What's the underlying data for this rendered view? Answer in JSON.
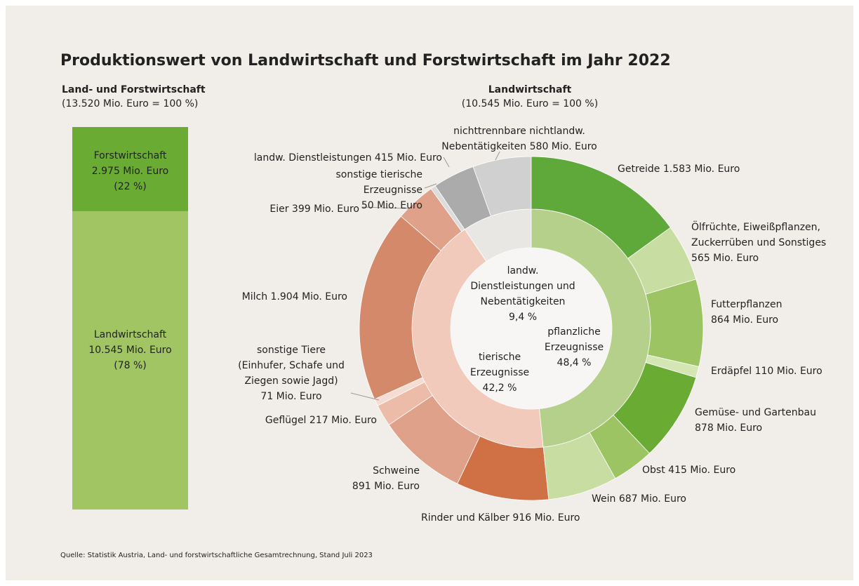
{
  "title": "Produktionswert von Landwirtschaft und Forstwirtschaft im Jahr 2022",
  "source": "Quelle: Statistik Austria, Land- und forstwirtschaftliche Gesamtrechnung, Stand Juli 2023",
  "chart_data": [
    {
      "type": "stacked_bar",
      "title": "Land- und Forstwirtschaft",
      "subtitle": "(13.520 Mio. Euro = 100 %)",
      "categories": [
        "Forstwirtschaft",
        "Landwirtschaft"
      ],
      "values": [
        2975,
        10545
      ],
      "value_labels": [
        "2.975 Mio. Euro",
        "10.545 Mio. Euro"
      ],
      "shares": [
        22,
        78
      ],
      "share_labels": [
        "(22 %)",
        "(78 %)"
      ],
      "colors": [
        "#6aab34",
        "#a2c563"
      ]
    },
    {
      "type": "sunburst",
      "title": "Landwirtschaft",
      "subtitle": "(10.545 Mio. Euro = 100 %)",
      "inner": {
        "categories": [
          "pflanzliche Erzeugnisse",
          "tierische Erzeugnisse",
          "landw. Dienstleistungen und Nebentätigkeiten"
        ],
        "values": [
          48.4,
          42.2,
          9.4
        ],
        "value_labels": [
          "48,4 %",
          "42,2 %",
          "9,4 %"
        ],
        "colors": [
          "#b5d08a",
          "#f2cabc",
          "#e9e7e4"
        ]
      },
      "outer": {
        "categories": [
          "Getreide",
          "Ölfrüchte, Eiweißpflanzen, Zuckerrüben und Sonstiges",
          "Futterpflanzen",
          "Erdäpfel",
          "Gemüse- und Gartenbau",
          "Obst",
          "Wein",
          "Rinder und Kälber",
          "Schweine",
          "Geflügel",
          "sonstige Tiere (Einhufer, Schafe und Ziegen sowie Jagd)",
          "Milch",
          "Eier",
          "sonstige tierische Erzeugnisse",
          "landw. Dienstleistungen",
          "nichttrennbare nichtlandw. Nebentätigkeiten"
        ],
        "values": [
          1583,
          565,
          864,
          110,
          878,
          415,
          687,
          916,
          891,
          217,
          71,
          1904,
          399,
          50,
          415,
          580
        ],
        "value_labels": [
          "1.583 Mio. Euro",
          "565 Mio. Euro",
          "864 Mio. Euro",
          "110 Mio. Euro",
          "878 Mio. Euro",
          "415 Mio. Euro",
          "687 Mio. Euro",
          "916 Mio. Euro",
          "891 Mio. Euro",
          "217 Mio. Euro",
          "71 Mio. Euro",
          "1.904 Mio. Euro",
          "399 Mio. Euro",
          "50 Mio. Euro",
          "415 Mio. Euro",
          "580 Mio. Euro"
        ],
        "colors": [
          "#5fa83a",
          "#c8dda2",
          "#9dc463",
          "#d4e6b3",
          "#6aab34",
          "#9dc463",
          "#c8dda2",
          "#cf7045",
          "#e0a18a",
          "#ecbca9",
          "#f6ddd3",
          "#d4896a",
          "#e0a18a",
          "#dcdcdc",
          "#ababab",
          "#d0d0d0"
        ]
      }
    }
  ]
}
